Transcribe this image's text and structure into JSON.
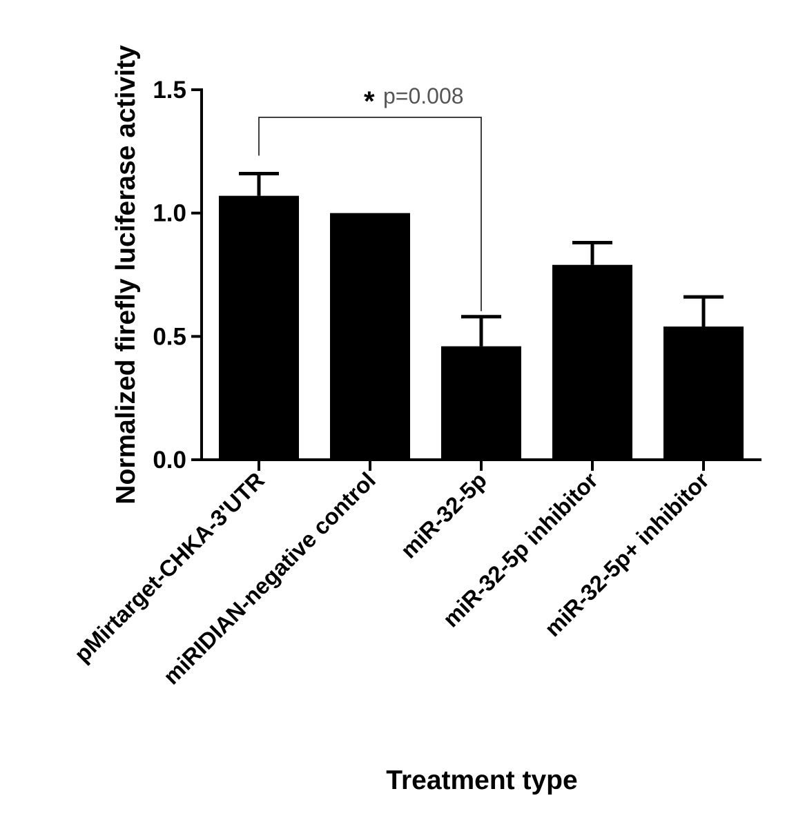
{
  "chart_data": {
    "type": "bar",
    "title": "",
    "xlabel": "Treatment type",
    "ylabel": "Normalized firefly luciferase activity",
    "ylim": [
      0,
      1.5
    ],
    "yticks": [
      "0.0",
      "0.5",
      "1.0",
      "1.5"
    ],
    "ytick_values": [
      0,
      0.5,
      1.0,
      1.5
    ],
    "categories": [
      "pMirtarget-CHKA-3'UTR",
      "miRIDIAN-negative control",
      "miR-32-5p",
      "miR-32-5p inhibitor",
      "miR-32-5p+ inhibitor"
    ],
    "values": [
      1.07,
      1.0,
      0.46,
      0.79,
      0.54
    ],
    "errors": [
      0.09,
      0.0,
      0.12,
      0.09,
      0.12
    ],
    "bar_color": "#000000",
    "significance": {
      "from": 0,
      "to": 2,
      "marker": "*",
      "label": "p=0.008"
    }
  }
}
